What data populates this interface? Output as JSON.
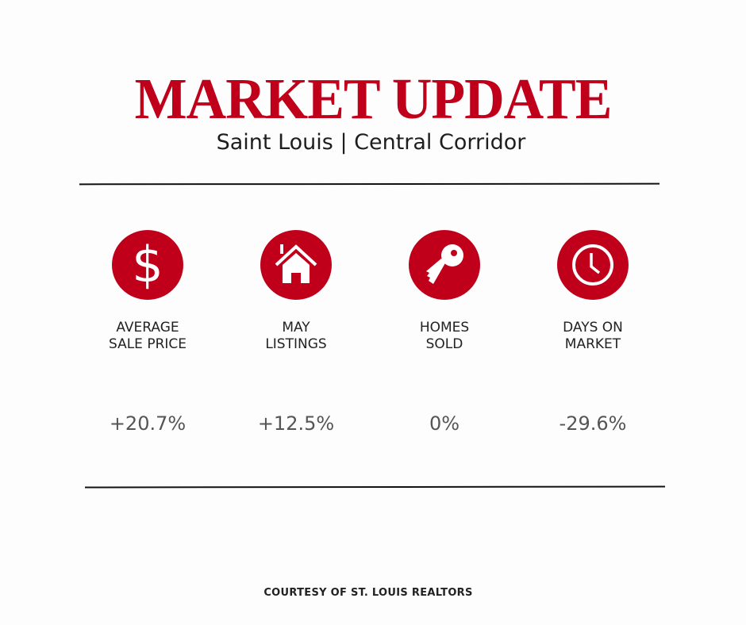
{
  "header": {
    "title": "MARKET UPDATE",
    "subtitle": "Saint Louis | Central Corridor"
  },
  "colors": {
    "accent": "#c0001a",
    "text": "#222222",
    "value": "#555555"
  },
  "stats": [
    {
      "icon": "dollar-icon",
      "label_line1": "AVERAGE",
      "label_line2": "SALE PRICE",
      "value": "+20.7%"
    },
    {
      "icon": "house-icon",
      "label_line1": "MAY",
      "label_line2": "LISTINGS",
      "value": "+12.5%"
    },
    {
      "icon": "key-icon",
      "label_line1": "HOMES",
      "label_line2": "SOLD",
      "value": "0%"
    },
    {
      "icon": "clock-icon",
      "label_line1": "DAYS ON",
      "label_line2": "MARKET",
      "value": "-29.6%"
    }
  ],
  "footer": {
    "text": "COURTESY OF ST. LOUIS REALTORS"
  }
}
